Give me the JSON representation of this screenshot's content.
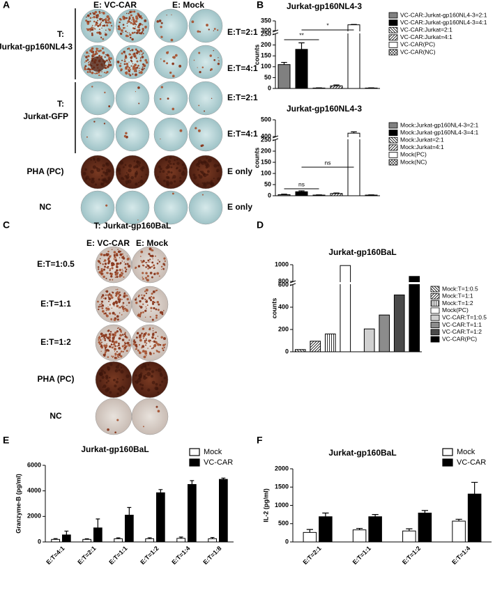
{
  "panel_labels": [
    "A",
    "B",
    "C",
    "D",
    "E",
    "F"
  ],
  "panel_a": {
    "col_headers": [
      "E: VC-CAR",
      "E: Mock"
    ],
    "target_labels": [
      [
        "T:",
        "Jurkat-gp160NL4-3"
      ],
      [
        "T:",
        "Jurkat-GFP"
      ],
      [
        "PHA (PC)"
      ],
      [
        "NC"
      ]
    ],
    "ratio_labels": [
      "E:T=2:1",
      "E:T=4:1",
      "E:T=2:1",
      "E:T=4:1",
      "E only",
      "E only"
    ]
  },
  "panel_c": {
    "title": "T: Jurkat-gp160BaL",
    "col_headers": [
      "E: VC-CAR",
      "E: Mock"
    ],
    "row_labels": [
      "E:T=1:0.5",
      "E:T=1:1",
      "E:T=1:2",
      "PHA (PC)",
      "NC"
    ]
  },
  "chart_data": [
    {
      "type": "bar",
      "title": "Jurkat-gp160NL4-3",
      "y_label": "counts",
      "ylim": [
        0,
        350
      ],
      "y_break": [
        250,
        300
      ],
      "yticks": [
        0,
        50,
        100,
        150,
        200,
        250,
        300,
        350
      ],
      "annotations": [
        "**",
        "*"
      ],
      "series": [
        {
          "name": "VC-CAR:Jurkat-gp160NL4-3=2:1",
          "color": "#808080",
          "values": [
            110
          ],
          "errors": [
            10
          ]
        },
        {
          "name": "VC-CAR:Jurkat-gp160NL4-3=4:1",
          "color": "#000000",
          "values": [
            180
          ],
          "errors": [
            30
          ]
        },
        {
          "name": "VC-CAR:Jurkat=2:1",
          "color": "#ffffff",
          "pattern": "backslash",
          "values": [
            2
          ],
          "errors": [
            1
          ]
        },
        {
          "name": "VC-CAR:Jurkat=4:1",
          "color": "#ffffff",
          "pattern": "slash",
          "values": [
            12
          ],
          "errors": [
            4
          ]
        },
        {
          "name": "VC-CAR(PC)",
          "color": "#ffffff",
          "values": [
            330
          ],
          "errors": [
            2
          ]
        },
        {
          "name": "VC-CAR(NC)",
          "color": "#ffffff",
          "pattern": "cross",
          "values": [
            2
          ],
          "errors": [
            1
          ]
        }
      ]
    },
    {
      "type": "bar",
      "title": "Jurkat-gp160NL4-3",
      "y_label": "counts",
      "ylim": [
        0,
        500
      ],
      "y_break": [
        250,
        400
      ],
      "yticks": [
        0,
        50,
        100,
        150,
        200,
        250,
        400,
        500
      ],
      "annotations": [
        "ns",
        "ns"
      ],
      "series": [
        {
          "name": "Mock:Jurkat-gp160NL4-3=2:1",
          "color": "#808080",
          "values": [
            5
          ],
          "errors": [
            2
          ]
        },
        {
          "name": "Mock:Jurkat-gp160NL4-3=4:1",
          "color": "#000000",
          "values": [
            18
          ],
          "errors": [
            4
          ]
        },
        {
          "name": "Mock:Jurkat=2:1",
          "color": "#ffffff",
          "pattern": "backslash",
          "values": [
            3
          ],
          "errors": [
            1
          ]
        },
        {
          "name": "Mock:Jurkat=4:1",
          "color": "#ffffff",
          "pattern": "slash",
          "values": [
            10
          ],
          "errors": [
            2
          ]
        },
        {
          "name": "Mock(PC)",
          "color": "#ffffff",
          "values": [
            420
          ],
          "errors": [
            8
          ]
        },
        {
          "name": "Mock(NC)",
          "color": "#ffffff",
          "pattern": "cross",
          "values": [
            3
          ],
          "errors": [
            1
          ]
        }
      ]
    },
    {
      "type": "bar",
      "title": "Jurkat-gp160BaL",
      "y_label": "counts",
      "ylim": [
        0,
        1000
      ],
      "y_break": [
        600,
        800
      ],
      "yticks": [
        0,
        200,
        400,
        600,
        800,
        1000
      ],
      "series": [
        {
          "name": "Mock:T=1:0.5",
          "color": "#ffffff",
          "pattern": "backslash",
          "values": [
            20
          ]
        },
        {
          "name": "Mock:T=1:1",
          "color": "#ffffff",
          "pattern": "slash",
          "values": [
            95
          ]
        },
        {
          "name": "Mock:T=1:2",
          "color": "#ffffff",
          "pattern": "vertical",
          "values": [
            160
          ]
        },
        {
          "name": "Mock(PC)",
          "color": "#ffffff",
          "values": [
            990
          ]
        },
        {
          "name": "VC-CAR:T=1:0.5",
          "color": "#d0d0d0",
          "values": [
            205
          ]
        },
        {
          "name": "VC-CAR:T=1:1",
          "color": "#8c8c8c",
          "values": [
            330
          ]
        },
        {
          "name": "VC-CAR:T=1:2",
          "color": "#4a4a4a",
          "values": [
            510
          ]
        },
        {
          "name": "VC-CAR(PC)",
          "color": "#000000",
          "values": [
            860
          ]
        }
      ]
    },
    {
      "type": "bar",
      "title": "Jurkat-gp160BaL",
      "y_label": "Granzyme-B (pg/ml)",
      "ylim": [
        0,
        6000
      ],
      "yticks": [
        0,
        2000,
        4000,
        6000
      ],
      "categories": [
        "E:T=4:1",
        "E:T=2:1",
        "E:T=1:1",
        "E:T=1:2",
        "E:T=1:4",
        "E:T=1:8"
      ],
      "series": [
        {
          "name": "Mock",
          "color": "#ffffff",
          "values": [
            200,
            200,
            250,
            250,
            280,
            250
          ],
          "errors": [
            60,
            50,
            70,
            80,
            100,
            100
          ]
        },
        {
          "name": "VC-CAR",
          "color": "#000000",
          "values": [
            550,
            1100,
            2100,
            3850,
            4500,
            4900
          ],
          "errors": [
            300,
            700,
            600,
            250,
            300,
            100
          ]
        }
      ]
    },
    {
      "type": "bar",
      "title": "Jurkat-gp160BaL",
      "y_label": "IL-2 (pg/ml)",
      "ylim": [
        0,
        2000
      ],
      "yticks": [
        0,
        500,
        1000,
        1500,
        2000
      ],
      "categories": [
        "E:T=2:1",
        "E:T=1:1",
        "E:T=1:2",
        "E:T=1:4"
      ],
      "series": [
        {
          "name": "Mock",
          "color": "#ffffff",
          "values": [
            260,
            330,
            300,
            570
          ],
          "errors": [
            80,
            40,
            60,
            50
          ]
        },
        {
          "name": "VC-CAR",
          "color": "#000000",
          "values": [
            690,
            690,
            790,
            1310
          ],
          "errors": [
            100,
            60,
            70,
            320
          ]
        }
      ]
    }
  ]
}
